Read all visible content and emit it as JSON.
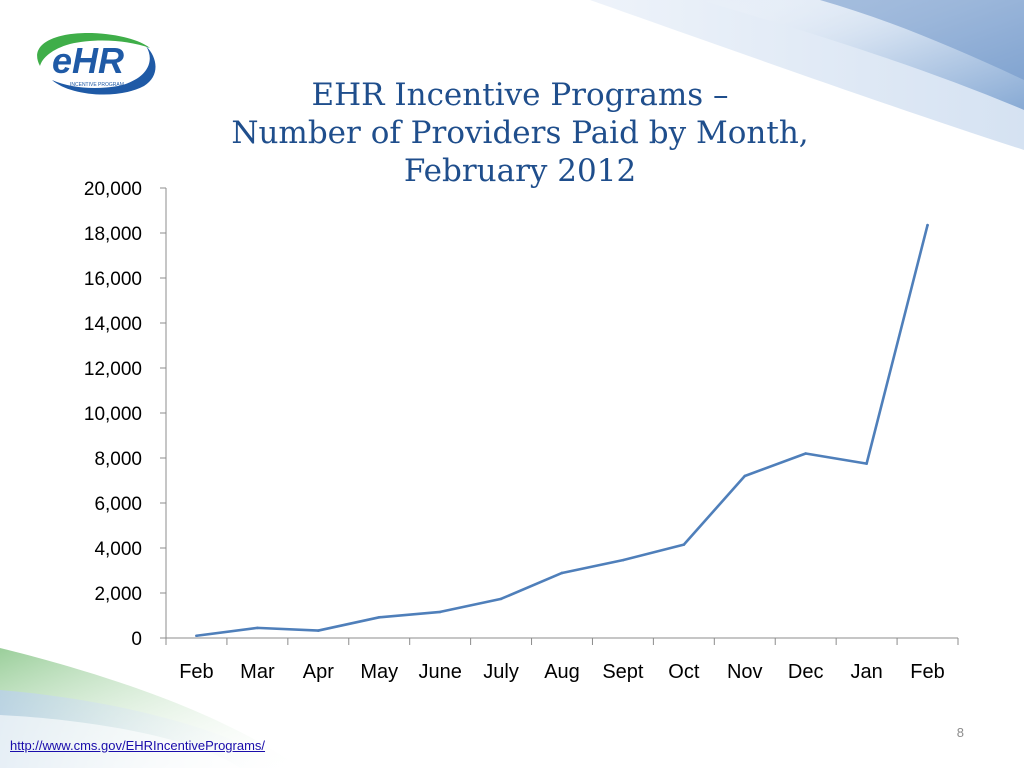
{
  "slide": {
    "title_lines": [
      "EHR Incentive Programs –",
      "Number of Providers Paid by Month,",
      "February 2012"
    ],
    "page_number": "8",
    "source_link": "http://www.cms.gov/EHRIncentivePrograms/",
    "logo": {
      "text": "eHR",
      "subtext": "INCENTIVE PROGRAM",
      "icon": "ehr-logo"
    }
  },
  "colors": {
    "title": "#1f4e8c",
    "line": "#4f7fba",
    "axis": "#8c8c8c",
    "logo_green": "#3fae49",
    "logo_blue": "#1f5aa6"
  },
  "chart_data": {
    "type": "line",
    "title": "EHR Incentive Programs – Number of Providers Paid by Month, February 2012",
    "xlabel": "",
    "ylabel": "",
    "categories": [
      "Feb",
      "Mar",
      "Apr",
      "May",
      "June",
      "July",
      "Aug",
      "Sept",
      "Oct",
      "Nov",
      "Dec",
      "Jan",
      "Feb"
    ],
    "series": [
      {
        "name": "Providers Paid",
        "values": [
          100,
          450,
          330,
          920,
          1160,
          1740,
          2890,
          3460,
          4150,
          7200,
          8200,
          7750,
          18350
        ]
      }
    ],
    "ylim": [
      0,
      20000
    ],
    "yticks": [
      0,
      2000,
      4000,
      6000,
      8000,
      10000,
      12000,
      14000,
      16000,
      18000,
      20000
    ],
    "ytick_labels": [
      "0",
      "2,000",
      "4,000",
      "6,000",
      "8,000",
      "10,000",
      "12,000",
      "14,000",
      "16,000",
      "18,000",
      "20,000"
    ],
    "grid": false,
    "legend": "none"
  }
}
